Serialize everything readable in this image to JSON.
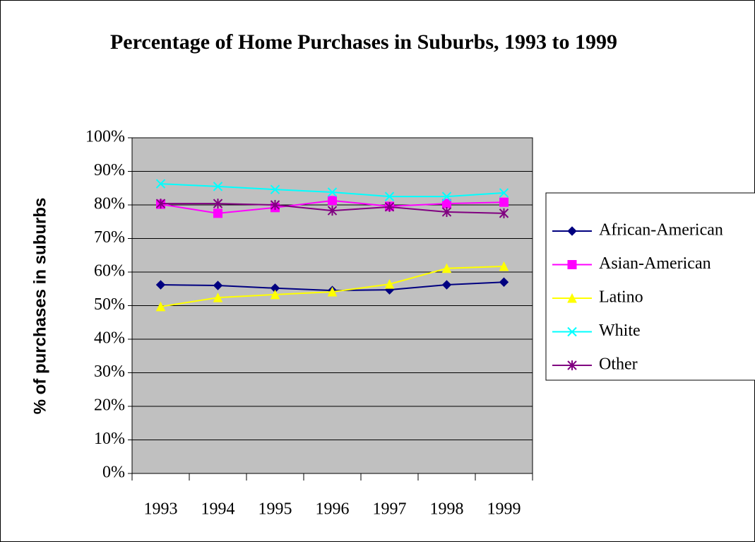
{
  "chart_data": {
    "type": "line",
    "title": "Percentage of Home Purchases in Suburbs, 1993 to 1999",
    "y_label": "% of purchases in suburbs",
    "categories": [
      "1993",
      "1994",
      "1995",
      "1996",
      "1997",
      "1998",
      "1999"
    ],
    "series": [
      {
        "name": "African-American",
        "color": "#000080",
        "marker": "diamond",
        "values": [
          56.2,
          56,
          55.2,
          54.5,
          54.7,
          56.2,
          57
        ]
      },
      {
        "name": "Asian-American",
        "color": "#ff00ff",
        "marker": "square",
        "values": [
          80.2,
          77.5,
          79.2,
          81.3,
          79.6,
          80.4,
          80.8
        ]
      },
      {
        "name": "Latino",
        "color": "#ffff00",
        "marker": "triangle",
        "values": [
          49.7,
          52.4,
          53.3,
          54.1,
          56.4,
          61.1,
          61.7
        ]
      },
      {
        "name": "White",
        "color": "#00ffff",
        "marker": "x",
        "values": [
          86.3,
          85.5,
          84.6,
          83.8,
          82.5,
          82.5,
          83.6
        ]
      },
      {
        "name": "Other",
        "color": "#800080",
        "marker": "asterisk",
        "values": [
          80.4,
          80.4,
          80,
          78.3,
          79.4,
          77.9,
          77.5
        ]
      }
    ],
    "ylim": [
      0,
      100
    ],
    "yticks": [
      {
        "value": 0,
        "label": "0%"
      },
      {
        "value": 10,
        "label": "10%"
      },
      {
        "value": 20,
        "label": "20%"
      },
      {
        "value": 30,
        "label": "30%"
      },
      {
        "value": 40,
        "label": "40%"
      },
      {
        "value": 50,
        "label": "50%"
      },
      {
        "value": 60,
        "label": "60%"
      },
      {
        "value": 70,
        "label": "70%"
      },
      {
        "value": 80,
        "label": "80%"
      },
      {
        "value": 90,
        "label": "90%"
      },
      {
        "value": 100,
        "label": "100%"
      }
    ],
    "grid": true,
    "legend_position": "right"
  }
}
